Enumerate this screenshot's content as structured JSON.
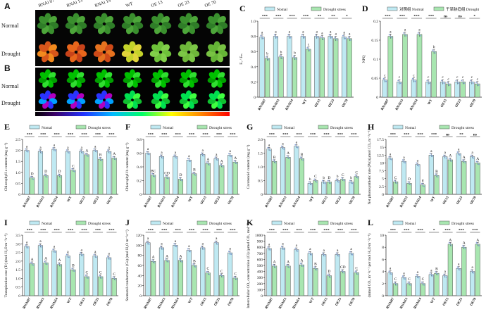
{
  "photos": {
    "panel_A": {
      "label": "A",
      "rows": [
        "Normal",
        "Drought"
      ],
      "cols": [
        "RNAi 07",
        "RNAi 13",
        "RNAi 14",
        "WT",
        "OE 13",
        "OE 23",
        "OE 70"
      ]
    },
    "panel_B": {
      "label": "B",
      "rows": [
        "Normal",
        "Drought"
      ]
    }
  },
  "colors": {
    "normal": "#bfe9f2",
    "drought": "#a8e6b0",
    "edge": "#555555",
    "dot": "#7f9fd8"
  },
  "chart_data": [
    {
      "id": "C",
      "label": "C",
      "type": "bar",
      "legend": [
        "Nomal",
        "Drought stress"
      ],
      "ylabel": "Fᵥ / Fₘ",
      "ylim": [
        0,
        1.0
      ],
      "ticks": [
        0,
        0.2,
        0.4,
        0.6,
        0.8,
        1.0
      ],
      "categories": [
        "RNAi07",
        "RNAi13",
        "RNAi14",
        "WT",
        "OE13",
        "OE23",
        "OE70"
      ],
      "series": [
        {
          "name": "Nomal",
          "values": [
            0.79,
            0.8,
            0.8,
            0.8,
            0.8,
            0.8,
            0.79
          ]
        },
        {
          "name": "Drought stress",
          "values": [
            0.51,
            0.53,
            0.52,
            0.63,
            0.78,
            0.77,
            0.77
          ]
        }
      ],
      "letters": [
        [
          "a",
          "b"
        ],
        [
          "a",
          "b"
        ],
        [
          "a",
          "b"
        ],
        [
          "a",
          "c"
        ],
        [
          "a",
          "a"
        ],
        [
          "a",
          "a"
        ],
        [
          "a",
          "a"
        ]
      ],
      "sig": [
        "***",
        "***",
        "***",
        "***",
        "**",
        "**",
        "*"
      ]
    },
    {
      "id": "D",
      "label": "D",
      "type": "bar",
      "legend": [
        "对照组 Normal",
        "干旱胁迫组 Drought"
      ],
      "ylabel": "NPQ",
      "ylim": [
        0,
        0.2
      ],
      "ticks": [
        0,
        0.05,
        0.1,
        0.15,
        0.2
      ],
      "categories": [
        "RNAi07",
        "RNAi13",
        "RNAi14",
        "WT",
        "OE13",
        "OE23",
        "OE70"
      ],
      "series": [
        {
          "name": "Normal",
          "values": [
            0.045,
            0.04,
            0.045,
            0.04,
            0.04,
            0.04,
            0.04
          ]
        },
        {
          "name": "Drought",
          "values": [
            0.16,
            0.165,
            0.165,
            0.12,
            0.035,
            0.04,
            0.035
          ]
        }
      ],
      "letters": [
        [
          "c",
          "a"
        ],
        [
          "c",
          "a"
        ],
        [
          "c",
          "a"
        ],
        [
          "c",
          "b"
        ],
        [
          "c",
          "c"
        ],
        [
          "c",
          "c"
        ],
        [
          "c",
          "c"
        ]
      ],
      "sig": [
        "***",
        "***",
        "***",
        "***",
        "ns",
        "ns",
        "*"
      ]
    },
    {
      "id": "E",
      "label": "E",
      "type": "bar",
      "legend": [
        "Nomal",
        "Drought stress"
      ],
      "ylabel": "Chlorophyll a content (mg g⁻¹)",
      "ylim": [
        0,
        2.5
      ],
      "ticks": [
        0,
        0.5,
        1.0,
        1.5,
        2.0,
        2.5
      ],
      "categories": [
        "RNAi07",
        "RNAi13",
        "RNAi14",
        "WT",
        "OE13",
        "OE23",
        "OE70"
      ],
      "series": [
        {
          "name": "Nomal",
          "values": [
            2.0,
            1.95,
            2.05,
            1.95,
            1.95,
            2.0,
            1.95
          ]
        },
        {
          "name": "Drought stress",
          "values": [
            0.75,
            0.85,
            0.85,
            1.1,
            1.8,
            1.6,
            1.65
          ]
        }
      ],
      "letters": [
        [
          "a",
          "D"
        ],
        [
          "a",
          "D"
        ],
        [
          "a",
          "D"
        ],
        [
          "a",
          "C"
        ],
        [
          "a",
          "A"
        ],
        [
          "a",
          "B"
        ],
        [
          "a",
          "A"
        ]
      ],
      "sig": [
        "***",
        "***",
        "***",
        "***",
        "***",
        "***",
        "***"
      ]
    },
    {
      "id": "F",
      "label": "F",
      "type": "bar",
      "legend": [
        "Nomal",
        "Drought stress"
      ],
      "ylabel": "Chlorophyll b content (mg g⁻¹)",
      "ylim": [
        0,
        0.8
      ],
      "ticks": [
        0,
        0.2,
        0.4,
        0.6,
        0.8
      ],
      "categories": [
        "RNAi07",
        "RNAi13",
        "RNAi14",
        "WT",
        "OE13",
        "OE23",
        "OE70"
      ],
      "series": [
        {
          "name": "Nomal",
          "values": [
            0.6,
            0.55,
            0.55,
            0.5,
            0.58,
            0.52,
            0.57
          ]
        },
        {
          "name": "Drought stress",
          "values": [
            0.28,
            0.25,
            0.22,
            0.3,
            0.45,
            0.42,
            0.47
          ]
        }
      ],
      "letters": [
        [
          "a",
          "BC"
        ],
        [
          "a",
          "CD"
        ],
        [
          "a",
          "D"
        ],
        [
          "a",
          "B"
        ],
        [
          "a",
          "A"
        ],
        [
          "a",
          "A"
        ],
        [
          "a",
          "A"
        ]
      ],
      "sig": [
        "***",
        "***",
        "***",
        "***",
        "***",
        "***",
        "***"
      ]
    },
    {
      "id": "G",
      "label": "G",
      "type": "bar",
      "legend": [
        "Nomal",
        "Drought stress"
      ],
      "ylabel": "Carotenoid content (mg g⁻¹)",
      "ylim": [
        0,
        2.0
      ],
      "ticks": [
        0,
        0.5,
        1.0,
        1.5,
        2.0
      ],
      "categories": [
        "RNAi07",
        "RNAi13",
        "RNAi14",
        "WT",
        "OE13",
        "OE23",
        "OE70"
      ],
      "series": [
        {
          "name": "Nomal",
          "values": [
            1.65,
            1.7,
            1.75,
            0.4,
            0.45,
            0.5,
            0.45
          ]
        },
        {
          "name": "Drought stress",
          "values": [
            1.2,
            1.35,
            1.3,
            0.5,
            0.45,
            0.55,
            0.65
          ]
        }
      ],
      "letters": [
        [
          "a",
          "B"
        ],
        [
          "a",
          "A"
        ],
        [
          "a",
          "B"
        ],
        [
          "b",
          "C"
        ],
        [
          "b",
          "D"
        ],
        [
          "b",
          "C"
        ],
        [
          "b",
          "C"
        ]
      ],
      "sig": [
        "***",
        "***",
        "***",
        "***",
        "***",
        "***",
        "***"
      ]
    },
    {
      "id": "H",
      "label": "H",
      "type": "bar",
      "legend": [
        "Nomal",
        "Drought stress"
      ],
      "ylabel": "Net photosynthetic rate (Pn) (µmol CO₂ m⁻²s⁻¹)",
      "ylim": [
        0,
        17.5
      ],
      "ticks": [
        0,
        2.5,
        5,
        7.5,
        10,
        12.5,
        15,
        17.5
      ],
      "categories": [
        "RNAi07",
        "RNAi13",
        "RNAi14",
        "WT",
        "OE13",
        "OE23",
        "OE70"
      ],
      "series": [
        {
          "name": "Nomal",
          "values": [
            11.5,
            10.5,
            9.5,
            12.5,
            12.0,
            13.0,
            12.0
          ]
        },
        {
          "name": "Drought stress",
          "values": [
            4.0,
            3.5,
            3.0,
            6.0,
            11.0,
            10.5,
            10.0
          ]
        }
      ],
      "letters": [
        [
          "a",
          "C"
        ],
        [
          "a",
          "D"
        ],
        [
          "a",
          "E"
        ],
        [
          "a",
          "B"
        ],
        [
          "a",
          "A"
        ],
        [
          "a",
          "A"
        ],
        [
          "a",
          "A"
        ]
      ],
      "sig": [
        "***",
        "***",
        "***",
        "***",
        "ns",
        "**",
        "ns"
      ]
    },
    {
      "id": "I",
      "label": "I",
      "type": "bar",
      "legend": [
        "Nomal",
        "Drought stress"
      ],
      "ylabel": "Transpiration rate (Tr) (mol H₂O m⁻²s⁻¹)",
      "ylim": [
        0,
        3.5
      ],
      "ticks": [
        0,
        0.5,
        1.0,
        1.5,
        2.0,
        2.5,
        3.0,
        3.5
      ],
      "categories": [
        "RNAi07",
        "RNAi13",
        "RNAi14",
        "WT",
        "OE13",
        "OE23",
        "OE70"
      ],
      "series": [
        {
          "name": "Nomal",
          "values": [
            2.85,
            2.9,
            2.6,
            2.3,
            2.4,
            2.3,
            2.2
          ]
        },
        {
          "name": "Drought stress",
          "values": [
            1.85,
            1.9,
            1.8,
            1.5,
            1.1,
            1.1,
            1.0
          ]
        }
      ],
      "letters": [
        [
          "a",
          "A"
        ],
        [
          "a",
          "A"
        ],
        [
          "a",
          "A"
        ],
        [
          "a",
          "B"
        ],
        [
          "a",
          "C"
        ],
        [
          "a",
          "C"
        ],
        [
          "a",
          "C"
        ]
      ],
      "sig": [
        "***",
        "***",
        "***",
        "***",
        "***",
        "***",
        "***"
      ]
    },
    {
      "id": "J",
      "label": "J",
      "type": "bar",
      "legend": [
        "Nomal",
        "Drought stress"
      ],
      "ylabel": "Stomatal conductance (Gs) (mol H₂O m⁻²s⁻¹)",
      "ylim": [
        0,
        120
      ],
      "ticks": [
        0,
        20,
        40,
        60,
        80,
        100,
        120
      ],
      "categories": [
        "RNAi07",
        "RNAi13",
        "RNAi14",
        "WT",
        "OE13",
        "OE23",
        "OE70"
      ],
      "series": [
        {
          "name": "Nomal",
          "values": [
            105,
            95,
            100,
            90,
            95,
            105,
            85
          ]
        },
        {
          "name": "Drought stress",
          "values": [
            68,
            70,
            70,
            60,
            45,
            40,
            35
          ]
        }
      ],
      "letters": [
        [
          "a",
          "A"
        ],
        [
          "a",
          "A"
        ],
        [
          "a",
          "A"
        ],
        [
          "a",
          "B"
        ],
        [
          "a",
          "C"
        ],
        [
          "a",
          "C"
        ],
        [
          "a",
          "C"
        ]
      ],
      "sig": [
        "***",
        "***",
        "***",
        "***",
        "***",
        "***",
        "***"
      ]
    },
    {
      "id": "K",
      "label": "K",
      "type": "bar",
      "legend": [
        "Nomal",
        "Drought stress"
      ],
      "ylabel": "Intercellular CO₂ concentration (Ci) (µmol CO₂ mol⁻¹)",
      "ylim": [
        0,
        1000
      ],
      "ticks": [
        0,
        100,
        200,
        300,
        400,
        500,
        600,
        700,
        800,
        900,
        1000
      ],
      "categories": [
        "RNAi07",
        "RNAi13",
        "RNAi14",
        "WT",
        "OE13",
        "OE23",
        "OE70"
      ],
      "series": [
        {
          "name": "Nomal",
          "values": [
            780,
            790,
            760,
            700,
            680,
            680,
            700
          ]
        },
        {
          "name": "Drought stress",
          "values": [
            490,
            490,
            510,
            450,
            330,
            400,
            380
          ]
        }
      ],
      "letters": [
        [
          "a",
          "A"
        ],
        [
          "a",
          "A"
        ],
        [
          "a",
          "A"
        ],
        [
          "a",
          "B"
        ],
        [
          "a",
          "D"
        ],
        [
          "a",
          "CD"
        ],
        [
          "a",
          "C"
        ]
      ],
      "sig": [
        "***",
        "***",
        "***",
        "***",
        "***",
        "***",
        "***"
      ]
    },
    {
      "id": "L",
      "label": "L",
      "type": "bar",
      "legend": [
        "Nomal",
        "Drought stress"
      ],
      "ylabel": "(mmol CO₂ m⁻²s⁻¹ per mol H₂O m⁻²s⁻¹)",
      "ylim": [
        0,
        10
      ],
      "ticks": [
        0,
        2,
        4,
        6,
        8,
        10
      ],
      "categories": [
        "RNAi07",
        "RNAi13",
        "RNAi14",
        "WT",
        "OE13",
        "OE23",
        "OE70"
      ],
      "series": [
        {
          "name": "Nomal",
          "values": [
            3.8,
            3.0,
            3.2,
            3.5,
            3.3,
            4.5,
            4.0
          ]
        },
        {
          "name": "Drought stress",
          "values": [
            2.0,
            2.0,
            2.0,
            3.7,
            8.5,
            8.0,
            8.5
          ]
        }
      ],
      "letters": [
        [
          "a",
          "C"
        ],
        [
          "a",
          "C"
        ],
        [
          "a",
          "C"
        ],
        [
          "a",
          "B"
        ],
        [
          "a",
          "A"
        ],
        [
          "a",
          "A"
        ],
        [
          "a",
          "A"
        ]
      ],
      "sig": [
        "***",
        "***",
        "***",
        "*",
        "***",
        "***",
        "***"
      ]
    }
  ]
}
